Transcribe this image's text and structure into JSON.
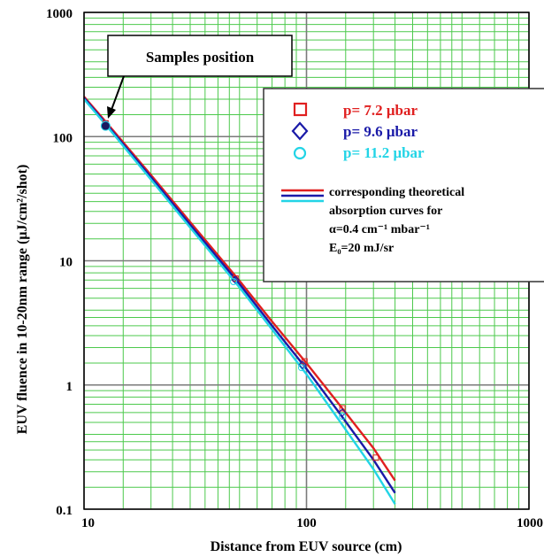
{
  "chart_data": {
    "type": "line",
    "xscale": "log",
    "yscale": "log",
    "xlim": [
      10,
      1000
    ],
    "ylim": [
      0.1,
      1000
    ],
    "xlabel": "Distance from EUV source (cm)",
    "ylabel": "EUV fluence in 10-20nm range (μJ/cm²/shot)",
    "x_ticks": [
      "10",
      "100",
      "1000"
    ],
    "y_ticks": [
      "0.1",
      "1",
      "10",
      "100",
      "1000"
    ],
    "grid": "major and minor (green), major decades (gray)",
    "annotation": {
      "text": "Samples position",
      "points_to": [
        12.5,
        125
      ]
    },
    "legend": {
      "placement": "upper-right",
      "entries": [
        {
          "marker": "square",
          "label": "p=  7.2 μbar",
          "color": "#e02020"
        },
        {
          "marker": "diamond",
          "label": "p=  9.6 μbar",
          "color": "#1a1aa8"
        },
        {
          "marker": "circle",
          "label": "p= 11.2 μbar",
          "color": "#22d4e6"
        }
      ],
      "note_lines": [
        "corresponding theoretical",
        "absorption curves for",
        "α=0.4 cm⁻¹ mbar⁻¹",
        "E₀=20 mJ/sr"
      ]
    },
    "series": [
      {
        "name": "p=  7.2 μbar",
        "color": "#e02020",
        "curve": {
          "x": [
            10,
            12.5,
            20,
            30,
            50,
            70,
            100,
            140,
            200,
            250
          ],
          "y": [
            210,
            132,
            49,
            20.5,
            6.9,
            3.25,
            1.5,
            0.7,
            0.31,
            0.17
          ]
        },
        "points": {
          "x": [
            12.5,
            48,
            98,
            145,
            205
          ],
          "y": [
            128,
            7.2,
            1.55,
            0.65,
            0.26
          ]
        }
      },
      {
        "name": "p=  9.6 μbar",
        "color": "#1a1aa8",
        "curve": {
          "x": [
            10,
            12.5,
            20,
            30,
            50,
            70,
            100,
            140,
            200,
            250
          ],
          "y": [
            205,
            128,
            47,
            19.5,
            6.5,
            3.0,
            1.35,
            0.6,
            0.25,
            0.135
          ]
        },
        "points": {
          "x": [
            12.5,
            48,
            96,
            145
          ],
          "y": [
            125,
            7.0,
            1.45,
            0.6
          ]
        }
      },
      {
        "name": "p= 11.2 μbar",
        "color": "#22d4e6",
        "curve": {
          "x": [
            10,
            12.5,
            20,
            30,
            50,
            70,
            100,
            140,
            200,
            250
          ],
          "y": [
            200,
            125,
            45,
            18.5,
            6.1,
            2.8,
            1.22,
            0.52,
            0.21,
            0.11
          ]
        },
        "points": {
          "x": [
            12.5,
            47,
            95,
            145
          ],
          "y": [
            122,
            6.8,
            1.38,
            0.56
          ]
        }
      }
    ]
  }
}
